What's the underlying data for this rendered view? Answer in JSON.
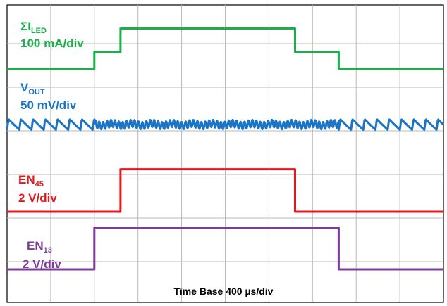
{
  "chart_data": {
    "type": "line",
    "title": "",
    "xlabel": "Time Base 400 µs/div",
    "x_divisions": 10,
    "grid": true,
    "series": [
      {
        "name": "ΣI",
        "name_sub": "LED",
        "scale": "100 mA/div",
        "color": "#19b04a",
        "unit": "div",
        "points": [
          [
            0,
            0
          ],
          [
            2,
            0
          ],
          [
            2,
            0.42
          ],
          [
            2.6,
            0.42
          ],
          [
            2.6,
            1
          ],
          [
            6.6,
            1
          ],
          [
            6.6,
            0.42
          ],
          [
            7.6,
            0.42
          ],
          [
            7.6,
            0
          ],
          [
            10,
            0
          ]
        ]
      },
      {
        "name": "V",
        "name_sub": "OUT",
        "scale": "50 mV/div",
        "color": "#1c75c4",
        "unit": "div",
        "waveform": [
          {
            "from": 0,
            "to": 2,
            "shape": "sawtooth",
            "period": 0.28,
            "amplitude_div": 0.26
          },
          {
            "from": 2,
            "to": 7.6,
            "shape": "ripple",
            "period": 0.09,
            "amplitude_div": 0.18
          },
          {
            "from": 7.6,
            "to": 10,
            "shape": "sawtooth",
            "period": 0.28,
            "amplitude_div": 0.26
          }
        ]
      },
      {
        "name": "EN",
        "name_sub": "45",
        "scale": "2 V/div",
        "color": "#e8161c",
        "unit": "div",
        "points": [
          [
            0,
            0
          ],
          [
            2.6,
            0
          ],
          [
            2.6,
            1.05
          ],
          [
            6.6,
            1.05
          ],
          [
            6.6,
            0
          ],
          [
            10,
            0
          ]
        ]
      },
      {
        "name": "EN",
        "name_sub": "13",
        "scale": "2 V/div",
        "color": "#7d3c98",
        "unit": "div",
        "points": [
          [
            0,
            0
          ],
          [
            2,
            0
          ],
          [
            2,
            1.03
          ],
          [
            7.6,
            1.03
          ],
          [
            7.6,
            0
          ],
          [
            10,
            0
          ]
        ]
      }
    ]
  }
}
